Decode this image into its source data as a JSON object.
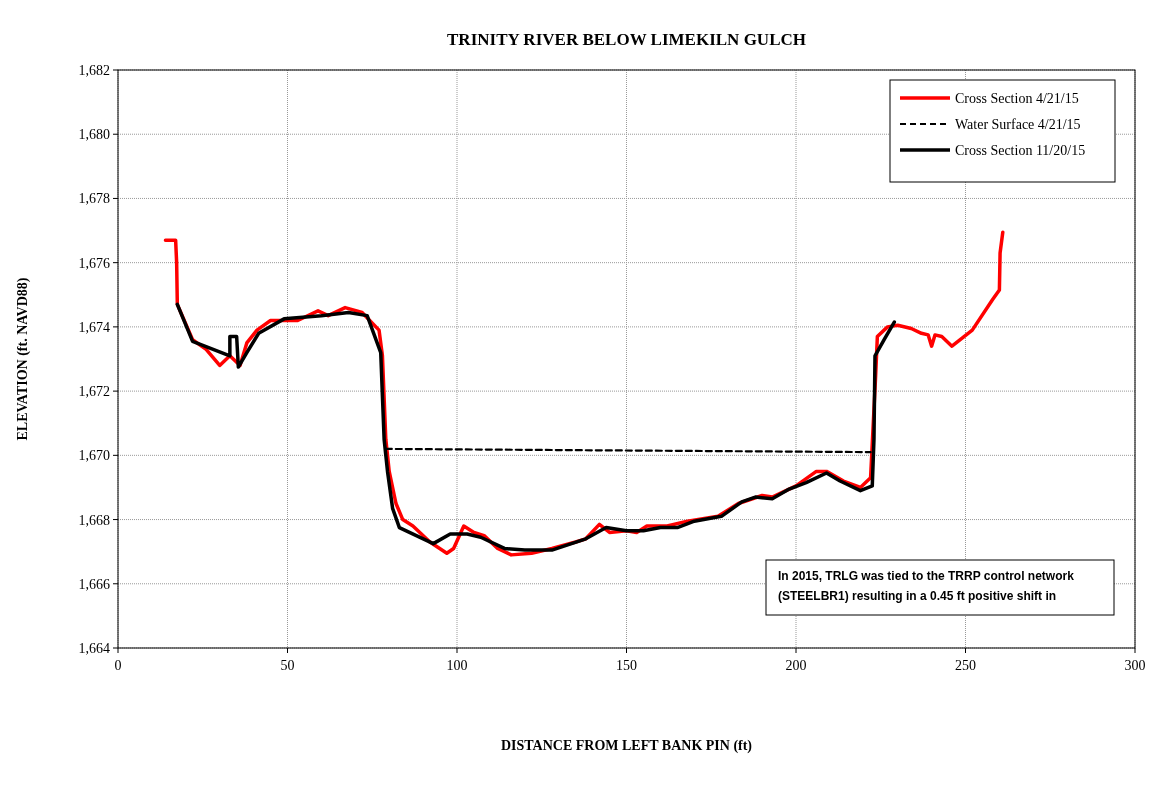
{
  "chart_data": {
    "type": "line",
    "title": "TRINITY RIVER BELOW LIMEKILN GULCH",
    "xlabel": "DISTANCE FROM LEFT BANK PIN (ft)",
    "ylabel": "ELEVATION (ft. NAVD88)",
    "xlim": [
      0,
      300
    ],
    "xticks": [
      0,
      50,
      100,
      150,
      200,
      250,
      300
    ],
    "ylim": [
      1664,
      1682
    ],
    "yticks": [
      {
        "value": 1664,
        "label": "1,664"
      },
      {
        "value": 1666,
        "label": "1,666"
      },
      {
        "value": 1668,
        "label": "1,668"
      },
      {
        "value": 1670,
        "label": "1,670"
      },
      {
        "value": 1672,
        "label": "1,672"
      },
      {
        "value": 1674,
        "label": "1,674"
      },
      {
        "value": 1676,
        "label": "1,676"
      },
      {
        "value": 1678,
        "label": "1,678"
      },
      {
        "value": 1680,
        "label": "1,680"
      },
      {
        "value": 1682,
        "label": "1,682"
      }
    ],
    "grid": true,
    "legend": "top right",
    "marker": "none",
    "annotations": [
      "In 2015, TRLG was tied to the TRRP control network (STEELBR1) resulting in a 0.45 ft positive shift in"
    ],
    "series": [
      {
        "name": "Cross Section 4/21/15",
        "color": "#ff0000",
        "line_style": "solid",
        "x": [
          14,
          17,
          17.3,
          17.5,
          22,
          26,
          30,
          33,
          36,
          38,
          41,
          45,
          49,
          53,
          59,
          62,
          67,
          72,
          77,
          78,
          79,
          80,
          82,
          84,
          87,
          92,
          97,
          99,
          102,
          105,
          108,
          112,
          116,
          122,
          128,
          135,
          138,
          142,
          145,
          150,
          153,
          156,
          162,
          168,
          177,
          183,
          190,
          193,
          200,
          206,
          209,
          214,
          219,
          222,
          223.5,
          224,
          227,
          230,
          234,
          237,
          239,
          240,
          241,
          243,
          246,
          249,
          252,
          258,
          260,
          260.2,
          261
        ],
        "values": [
          1676.7,
          1676.7,
          1676,
          1674.7,
          1673.6,
          1673.3,
          1672.8,
          1673.1,
          1672.8,
          1673.5,
          1673.9,
          1674.2,
          1674.2,
          1674.2,
          1674.5,
          1674.35,
          1674.6,
          1674.45,
          1673.9,
          1673.1,
          1670.5,
          1669.5,
          1668.5,
          1668,
          1667.8,
          1667.3,
          1666.95,
          1667.1,
          1667.8,
          1667.6,
          1667.5,
          1667.1,
          1666.9,
          1666.95,
          1667.1,
          1667.3,
          1667.4,
          1667.85,
          1667.6,
          1667.65,
          1667.6,
          1667.8,
          1667.8,
          1667.95,
          1668.1,
          1668.5,
          1668.75,
          1668.7,
          1669.05,
          1669.5,
          1669.5,
          1669.2,
          1669,
          1669.3,
          1672.5,
          1673.7,
          1674,
          1674.05,
          1673.95,
          1673.8,
          1673.75,
          1673.4,
          1673.75,
          1673.7,
          1673.4,
          1673.65,
          1673.9,
          1674.85,
          1675.15,
          1676.3,
          1676.95
        ]
      },
      {
        "name": "Water Surface 4/21/15",
        "color": "#000000",
        "line_style": "dashed",
        "x": [
          79,
          222
        ],
        "values": [
          1670.2,
          1670.1
        ]
      },
      {
        "name": "Cross Section 11/20/15",
        "color": "#000000",
        "line_style": "solid",
        "x": [
          17.5,
          22,
          33,
          33,
          35,
          35.5,
          38,
          41.5,
          49,
          60,
          68,
          73.5,
          77.5,
          78.5,
          79.5,
          81,
          83,
          88,
          93,
          98,
          103,
          107,
          114,
          120,
          128,
          138,
          144,
          150,
          155,
          160,
          165,
          170,
          178,
          184,
          188,
          193,
          198,
          203,
          209,
          213,
          219,
          222.5,
          223,
          223.3,
          226,
          229
        ],
        "values": [
          1674.7,
          1673.55,
          1673.1,
          1673.7,
          1673.7,
          1672.75,
          1673.2,
          1673.8,
          1674.25,
          1674.35,
          1674.45,
          1674.35,
          1673.2,
          1670.5,
          1669.5,
          1668.35,
          1667.75,
          1667.5,
          1667.25,
          1667.55,
          1667.55,
          1667.45,
          1667.1,
          1667.05,
          1667.05,
          1667.4,
          1667.75,
          1667.65,
          1667.65,
          1667.75,
          1667.75,
          1667.95,
          1668.1,
          1668.55,
          1668.7,
          1668.65,
          1668.95,
          1669.15,
          1669.45,
          1669.2,
          1668.9,
          1669.05,
          1670.5,
          1673.1,
          1673.6,
          1674.15
        ]
      }
    ]
  }
}
